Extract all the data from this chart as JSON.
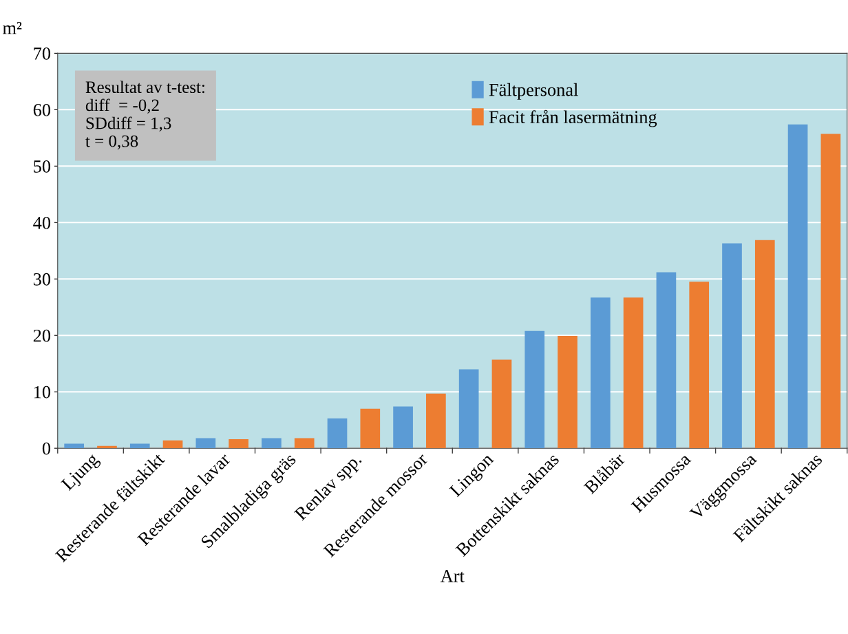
{
  "chart_data": {
    "type": "bar",
    "xlabel": "Art",
    "ylabel": "m²",
    "categories": [
      "Ljung",
      "Resterande fältskikt",
      "Resterande lavar",
      "Smalbladiga gräs",
      "Renlav spp.",
      "Resterande mossor",
      "Lingon",
      "Bottenskikt saknas",
      "Blåbär",
      "Husmossa",
      "Väggmossa",
      "Fältskikt saknas"
    ],
    "series": [
      {
        "name": "Fältpersonal",
        "color": "#5b9bd5",
        "values": [
          0.8,
          0.8,
          1.8,
          1.8,
          5.3,
          7.4,
          14.0,
          20.8,
          26.7,
          31.2,
          36.3,
          57.4
        ]
      },
      {
        "name": "Facit från lasermätning",
        "color": "#ed7d31",
        "values": [
          0.4,
          1.4,
          1.6,
          1.8,
          7.0,
          9.7,
          15.7,
          19.9,
          26.7,
          29.5,
          36.9,
          55.7
        ]
      }
    ],
    "ylim": [
      0,
      70
    ],
    "yticks": [
      0,
      10,
      20,
      30,
      40,
      50,
      60,
      70
    ],
    "grid": "y",
    "legend": "top right",
    "annotations": [
      "Resultat av t-test:\ndiff  = -0,2\nSDdiff = 1,3\nt = 0,38"
    ]
  }
}
